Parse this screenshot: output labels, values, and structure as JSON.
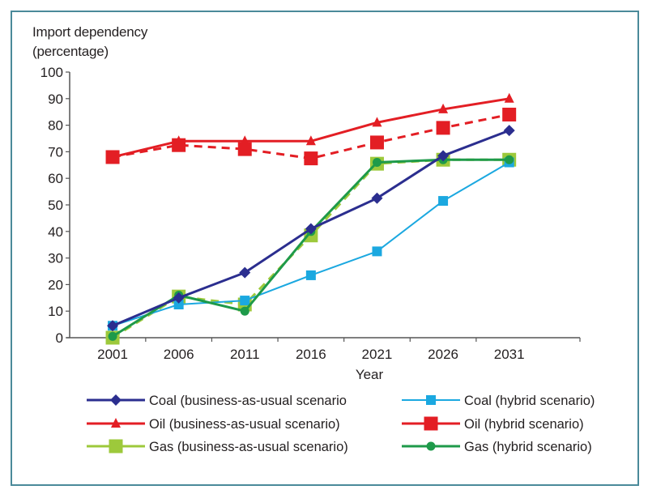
{
  "chart_data": {
    "type": "line",
    "title": "",
    "ylabel_lines": [
      "Import dependency",
      "(percentage)"
    ],
    "xlabel": "Year",
    "categories": [
      "2001",
      "2006",
      "2011",
      "2016",
      "2021",
      "2026",
      "2031"
    ],
    "ylim": [
      0,
      100
    ],
    "yticks": [
      0,
      10,
      20,
      30,
      40,
      50,
      60,
      70,
      80,
      90,
      100
    ],
    "grid": false,
    "legend_position": "bottom",
    "series": [
      {
        "name": "Coal (business-as-usual scenario",
        "color": "#2b2e8f",
        "marker": "diamond",
        "dash": false,
        "values": [
          4.5,
          15,
          24.5,
          41,
          52.5,
          68.5,
          78
        ]
      },
      {
        "name": "Coal (hybrid scenario)",
        "color": "#1ba8e0",
        "marker": "square-small",
        "dash": false,
        "values": [
          4.5,
          12.5,
          14,
          23.5,
          32.5,
          51.5,
          66
        ]
      },
      {
        "name": "Oil (business-as-usual scenario)",
        "color": "#e31e24",
        "marker": "triangle",
        "dash": false,
        "values": [
          68,
          74,
          74,
          74,
          81,
          86,
          90
        ]
      },
      {
        "name": "Oil (hybrid scenario)",
        "color": "#e31e24",
        "marker": "square-large",
        "dash": true,
        "values": [
          68,
          72.5,
          71,
          67.5,
          73.5,
          79,
          84
        ]
      },
      {
        "name": "Gas (business-as-usual scenario)",
        "color": "#9dc93b",
        "marker": "square-large",
        "dash": true,
        "values": [
          0,
          15.5,
          12.5,
          38.5,
          65.5,
          67,
          67
        ]
      },
      {
        "name": "Gas (hybrid scenario)",
        "color": "#1e9a4a",
        "marker": "circle",
        "dash": false,
        "values": [
          0.5,
          16,
          10,
          40,
          66,
          67,
          67
        ]
      }
    ]
  },
  "frame_color": "#4a8a9a"
}
